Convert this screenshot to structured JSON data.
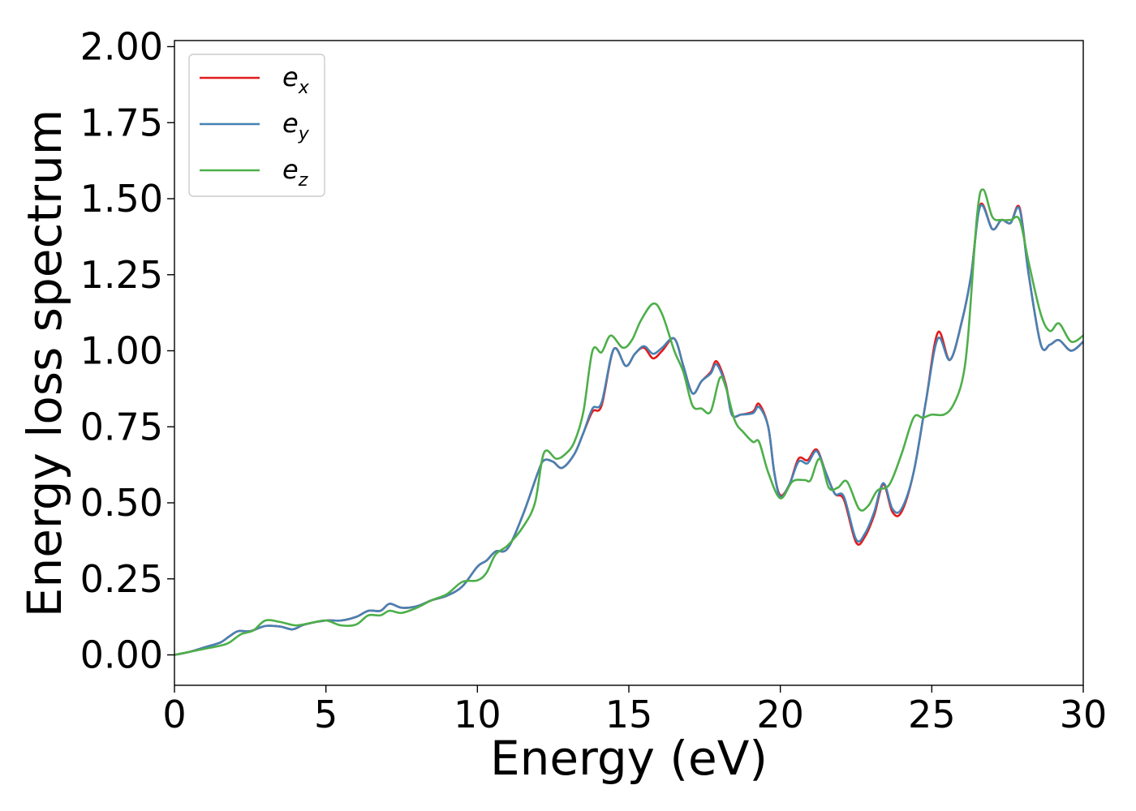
{
  "chart_data": {
    "type": "line",
    "title": "",
    "xlabel": "Energy (eV)",
    "ylabel": "Energy loss spectrum",
    "xlim": [
      0,
      30
    ],
    "ylim": [
      -0.1,
      2.02
    ],
    "x_ticks": [
      0,
      5,
      10,
      15,
      20,
      25,
      30
    ],
    "y_ticks": [
      0.0,
      0.25,
      0.5,
      0.75,
      1.0,
      1.25,
      1.5,
      1.75,
      2.0
    ],
    "x_tick_labels": [
      "0",
      "5",
      "10",
      "15",
      "20",
      "25",
      "30"
    ],
    "y_tick_labels": [
      "0.00",
      "0.25",
      "0.50",
      "0.75",
      "1.00",
      "1.25",
      "1.50",
      "1.75",
      "2.00"
    ],
    "grid": false,
    "legend_position": "top-left",
    "series": [
      {
        "name": "e_x",
        "legend_base": "e",
        "legend_sub": "x",
        "color": "#e41a1c",
        "points": [
          [
            0,
            0.0
          ],
          [
            0.5,
            0.01
          ],
          [
            1,
            0.025
          ],
          [
            1.5,
            0.04
          ],
          [
            1.8,
            0.06
          ],
          [
            2.1,
            0.078
          ],
          [
            2.5,
            0.078
          ],
          [
            3,
            0.095
          ],
          [
            3.5,
            0.093
          ],
          [
            3.9,
            0.084
          ],
          [
            4.3,
            0.1
          ],
          [
            5,
            0.113
          ],
          [
            5.5,
            0.113
          ],
          [
            6,
            0.125
          ],
          [
            6.4,
            0.145
          ],
          [
            6.8,
            0.145
          ],
          [
            7.1,
            0.168
          ],
          [
            7.5,
            0.155
          ],
          [
            8,
            0.16
          ],
          [
            8.5,
            0.18
          ],
          [
            9,
            0.195
          ],
          [
            9.5,
            0.225
          ],
          [
            10,
            0.29
          ],
          [
            10.3,
            0.31
          ],
          [
            10.6,
            0.34
          ],
          [
            11,
            0.35
          ],
          [
            11.5,
            0.46
          ],
          [
            12,
            0.6
          ],
          [
            12.2,
            0.64
          ],
          [
            12.5,
            0.635
          ],
          [
            12.8,
            0.615
          ],
          [
            13.2,
            0.66
          ],
          [
            13.5,
            0.73
          ],
          [
            13.8,
            0.8
          ],
          [
            14.1,
            0.82
          ],
          [
            14.5,
            1.005
          ],
          [
            14.9,
            0.95
          ],
          [
            15.2,
            0.99
          ],
          [
            15.5,
            1.01
          ],
          [
            15.8,
            0.975
          ],
          [
            16.1,
            1.0
          ],
          [
            16.5,
            1.04
          ],
          [
            16.8,
            0.95
          ],
          [
            17.1,
            0.86
          ],
          [
            17.4,
            0.9
          ],
          [
            17.7,
            0.93
          ],
          [
            17.9,
            0.965
          ],
          [
            18.2,
            0.89
          ],
          [
            18.4,
            0.79
          ],
          [
            18.7,
            0.79
          ],
          [
            19.1,
            0.8
          ],
          [
            19.3,
            0.825
          ],
          [
            19.6,
            0.75
          ],
          [
            19.8,
            0.6
          ],
          [
            20,
            0.525
          ],
          [
            20.3,
            0.56
          ],
          [
            20.6,
            0.645
          ],
          [
            20.9,
            0.64
          ],
          [
            21.2,
            0.675
          ],
          [
            21.5,
            0.6
          ],
          [
            21.8,
            0.53
          ],
          [
            22.1,
            0.51
          ],
          [
            22.5,
            0.37
          ],
          [
            22.8,
            0.39
          ],
          [
            23.1,
            0.46
          ],
          [
            23.4,
            0.56
          ],
          [
            23.7,
            0.47
          ],
          [
            24,
            0.47
          ],
          [
            24.4,
            0.6
          ],
          [
            24.8,
            0.83
          ],
          [
            25.2,
            1.06
          ],
          [
            25.6,
            0.97
          ],
          [
            26,
            1.1
          ],
          [
            26.3,
            1.25
          ],
          [
            26.6,
            1.48
          ],
          [
            27,
            1.4
          ],
          [
            27.3,
            1.43
          ],
          [
            27.6,
            1.42
          ],
          [
            27.9,
            1.47
          ],
          [
            28.2,
            1.25
          ],
          [
            28.6,
            1.02
          ],
          [
            28.9,
            1.02
          ],
          [
            29.2,
            1.035
          ],
          [
            29.6,
            1.0
          ],
          [
            30,
            1.03
          ]
        ]
      },
      {
        "name": "e_y",
        "legend_base": "e",
        "legend_sub": "y",
        "color": "#4682b4",
        "points": [
          [
            0,
            0.0
          ],
          [
            0.5,
            0.01
          ],
          [
            1,
            0.025
          ],
          [
            1.5,
            0.04
          ],
          [
            1.8,
            0.06
          ],
          [
            2.1,
            0.078
          ],
          [
            2.5,
            0.078
          ],
          [
            3,
            0.095
          ],
          [
            3.5,
            0.093
          ],
          [
            3.9,
            0.084
          ],
          [
            4.3,
            0.1
          ],
          [
            5,
            0.113
          ],
          [
            5.5,
            0.113
          ],
          [
            6,
            0.125
          ],
          [
            6.4,
            0.145
          ],
          [
            6.8,
            0.145
          ],
          [
            7.1,
            0.168
          ],
          [
            7.5,
            0.155
          ],
          [
            8,
            0.16
          ],
          [
            8.5,
            0.18
          ],
          [
            9,
            0.195
          ],
          [
            9.5,
            0.225
          ],
          [
            10,
            0.29
          ],
          [
            10.3,
            0.31
          ],
          [
            10.6,
            0.34
          ],
          [
            11,
            0.35
          ],
          [
            11.5,
            0.46
          ],
          [
            12,
            0.6
          ],
          [
            12.2,
            0.64
          ],
          [
            12.5,
            0.635
          ],
          [
            12.8,
            0.615
          ],
          [
            13.2,
            0.66
          ],
          [
            13.5,
            0.73
          ],
          [
            13.8,
            0.81
          ],
          [
            14.1,
            0.83
          ],
          [
            14.5,
            1.005
          ],
          [
            14.9,
            0.95
          ],
          [
            15.2,
            0.99
          ],
          [
            15.5,
            1.015
          ],
          [
            15.8,
            0.99
          ],
          [
            16.1,
            1.01
          ],
          [
            16.5,
            1.04
          ],
          [
            16.8,
            0.95
          ],
          [
            17.1,
            0.86
          ],
          [
            17.4,
            0.9
          ],
          [
            17.7,
            0.925
          ],
          [
            17.9,
            0.955
          ],
          [
            18.2,
            0.885
          ],
          [
            18.4,
            0.79
          ],
          [
            18.7,
            0.79
          ],
          [
            19.1,
            0.795
          ],
          [
            19.3,
            0.815
          ],
          [
            19.6,
            0.75
          ],
          [
            19.8,
            0.6
          ],
          [
            20,
            0.52
          ],
          [
            20.3,
            0.56
          ],
          [
            20.6,
            0.635
          ],
          [
            20.9,
            0.63
          ],
          [
            21.2,
            0.67
          ],
          [
            21.5,
            0.6
          ],
          [
            21.8,
            0.53
          ],
          [
            22.1,
            0.52
          ],
          [
            22.5,
            0.38
          ],
          [
            22.8,
            0.4
          ],
          [
            23.1,
            0.47
          ],
          [
            23.4,
            0.565
          ],
          [
            23.7,
            0.48
          ],
          [
            24,
            0.48
          ],
          [
            24.4,
            0.6
          ],
          [
            24.8,
            0.83
          ],
          [
            25.2,
            1.04
          ],
          [
            25.6,
            0.97
          ],
          [
            26,
            1.1
          ],
          [
            26.3,
            1.25
          ],
          [
            26.6,
            1.475
          ],
          [
            27,
            1.4
          ],
          [
            27.3,
            1.43
          ],
          [
            27.6,
            1.42
          ],
          [
            27.9,
            1.465
          ],
          [
            28.2,
            1.25
          ],
          [
            28.6,
            1.02
          ],
          [
            28.9,
            1.02
          ],
          [
            29.2,
            1.035
          ],
          [
            29.6,
            1.0
          ],
          [
            30,
            1.03
          ]
        ]
      },
      {
        "name": "e_z",
        "legend_base": "e",
        "legend_sub": "z",
        "color": "#4daf4a",
        "points": [
          [
            0,
            0.0
          ],
          [
            0.5,
            0.01
          ],
          [
            1,
            0.02
          ],
          [
            1.5,
            0.03
          ],
          [
            1.8,
            0.04
          ],
          [
            2.2,
            0.068
          ],
          [
            2.6,
            0.08
          ],
          [
            3,
            0.113
          ],
          [
            3.5,
            0.108
          ],
          [
            4,
            0.097
          ],
          [
            4.5,
            0.105
          ],
          [
            5,
            0.113
          ],
          [
            5.5,
            0.097
          ],
          [
            6,
            0.1
          ],
          [
            6.4,
            0.13
          ],
          [
            6.8,
            0.13
          ],
          [
            7.1,
            0.145
          ],
          [
            7.5,
            0.138
          ],
          [
            8,
            0.155
          ],
          [
            8.5,
            0.18
          ],
          [
            9,
            0.2
          ],
          [
            9.5,
            0.24
          ],
          [
            10,
            0.245
          ],
          [
            10.3,
            0.27
          ],
          [
            10.6,
            0.33
          ],
          [
            11,
            0.36
          ],
          [
            11.5,
            0.42
          ],
          [
            11.9,
            0.5
          ],
          [
            12.2,
            0.665
          ],
          [
            12.6,
            0.645
          ],
          [
            12.9,
            0.66
          ],
          [
            13.2,
            0.7
          ],
          [
            13.5,
            0.8
          ],
          [
            13.8,
            1.0
          ],
          [
            14.1,
            0.995
          ],
          [
            14.4,
            1.05
          ],
          [
            14.8,
            1.01
          ],
          [
            15.1,
            1.035
          ],
          [
            15.4,
            1.1
          ],
          [
            15.8,
            1.155
          ],
          [
            16.1,
            1.12
          ],
          [
            16.5,
            1.0
          ],
          [
            16.8,
            0.93
          ],
          [
            17.1,
            0.82
          ],
          [
            17.4,
            0.81
          ],
          [
            17.7,
            0.8
          ],
          [
            18,
            0.91
          ],
          [
            18.2,
            0.88
          ],
          [
            18.5,
            0.77
          ],
          [
            18.8,
            0.73
          ],
          [
            19.1,
            0.7
          ],
          [
            19.3,
            0.7
          ],
          [
            19.6,
            0.6
          ],
          [
            20,
            0.515
          ],
          [
            20.4,
            0.57
          ],
          [
            20.8,
            0.575
          ],
          [
            21,
            0.575
          ],
          [
            21.3,
            0.645
          ],
          [
            21.6,
            0.55
          ],
          [
            21.9,
            0.55
          ],
          [
            22.2,
            0.57
          ],
          [
            22.6,
            0.48
          ],
          [
            22.9,
            0.49
          ],
          [
            23.2,
            0.54
          ],
          [
            23.6,
            0.56
          ],
          [
            24,
            0.66
          ],
          [
            24.4,
            0.78
          ],
          [
            24.7,
            0.78
          ],
          [
            25,
            0.79
          ],
          [
            25.4,
            0.79
          ],
          [
            25.7,
            0.82
          ],
          [
            26,
            0.9
          ],
          [
            26.2,
            1.05
          ],
          [
            26.5,
            1.45
          ],
          [
            26.7,
            1.53
          ],
          [
            27,
            1.44
          ],
          [
            27.3,
            1.43
          ],
          [
            27.6,
            1.43
          ],
          [
            27.9,
            1.43
          ],
          [
            28.2,
            1.29
          ],
          [
            28.6,
            1.12
          ],
          [
            28.9,
            1.065
          ],
          [
            29.2,
            1.09
          ],
          [
            29.6,
            1.03
          ],
          [
            30,
            1.05
          ]
        ]
      }
    ]
  }
}
